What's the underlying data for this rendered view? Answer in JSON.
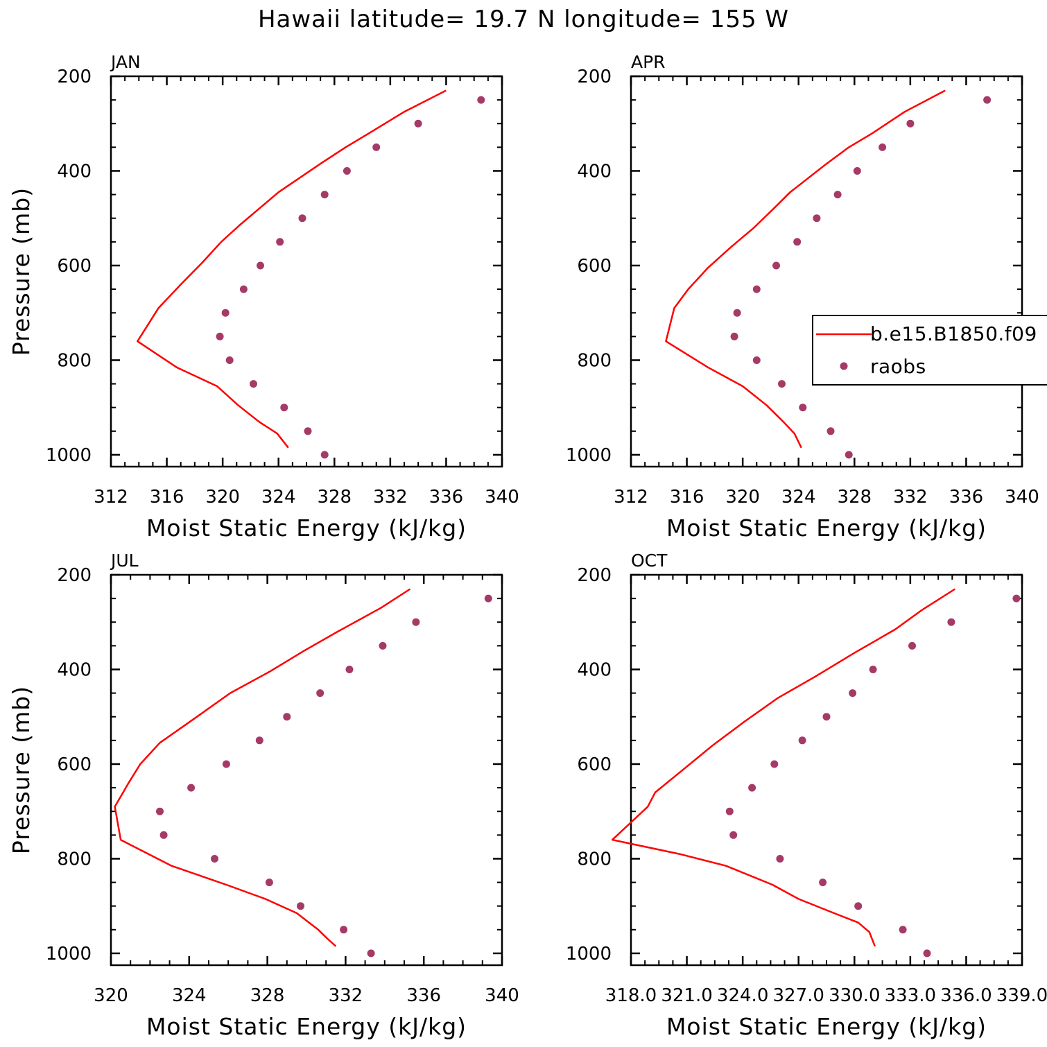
{
  "title": "Hawaii  latitude= 19.7 N longitude= 155 W",
  "legend": {
    "entries": [
      {
        "label": "b.e15.B1850.f09",
        "marker": "line"
      },
      {
        "label": "raobs",
        "marker": "dot"
      }
    ]
  },
  "colors": {
    "model": "#ff0000",
    "raobs": "#a63a66",
    "axis": "#000000"
  },
  "chart_data": [
    {
      "type": "line",
      "panel": "JAN",
      "title": "JAN",
      "xlabel": "Moist Static Energy (kJ/kg)",
      "ylabel": "Pressure (mb)",
      "xlim": [
        312,
        340
      ],
      "ylim": [
        1025,
        200
      ],
      "xticks": [
        312,
        316,
        320,
        324,
        328,
        332,
        336,
        340
      ],
      "xticklabels": [
        "312",
        "316",
        "320",
        "324",
        "328",
        "332",
        "336",
        "340"
      ],
      "yticks": [
        200,
        400,
        600,
        800,
        1000
      ],
      "yticklabels": [
        "200",
        "400",
        "600",
        "800",
        "1000"
      ],
      "series": [
        {
          "name": "b.e15.B1850.f09",
          "kind": "line",
          "points": [
            [
              336.0,
              230
            ],
            [
              333.0,
              275
            ],
            [
              330.5,
              320
            ],
            [
              328.8,
              350
            ],
            [
              327.0,
              385
            ],
            [
              325.5,
              415
            ],
            [
              324.0,
              445
            ],
            [
              322.6,
              480
            ],
            [
              321.2,
              515
            ],
            [
              319.9,
              550
            ],
            [
              318.5,
              595
            ],
            [
              317.0,
              640
            ],
            [
              315.4,
              690
            ],
            [
              313.9,
              760
            ],
            [
              316.7,
              815
            ],
            [
              319.6,
              855
            ],
            [
              321.1,
              895
            ],
            [
              322.6,
              930
            ],
            [
              323.9,
              955
            ],
            [
              324.7,
              985
            ]
          ]
        },
        {
          "name": "raobs",
          "kind": "scatter",
          "points": [
            [
              338.5,
              250
            ],
            [
              334.0,
              300
            ],
            [
              331.0,
              350
            ],
            [
              328.9,
              400
            ],
            [
              327.3,
              450
            ],
            [
              325.7,
              500
            ],
            [
              324.1,
              550
            ],
            [
              322.7,
              600
            ],
            [
              321.5,
              650
            ],
            [
              320.2,
              700
            ],
            [
              319.8,
              750
            ],
            [
              320.5,
              800
            ],
            [
              322.2,
              850
            ],
            [
              324.4,
              900
            ],
            [
              326.1,
              950
            ],
            [
              327.3,
              1000
            ]
          ]
        }
      ]
    },
    {
      "type": "line",
      "panel": "APR",
      "title": "APR",
      "xlabel": "Moist Static Energy (kJ/kg)",
      "ylabel": "",
      "xlim": [
        312,
        340
      ],
      "ylim": [
        1025,
        200
      ],
      "xticks": [
        312,
        316,
        320,
        324,
        328,
        332,
        336,
        340
      ],
      "xticklabels": [
        "312",
        "316",
        "320",
        "324",
        "328",
        "332",
        "336",
        "340"
      ],
      "yticks": [
        200,
        400,
        600,
        800,
        1000
      ],
      "yticklabels": [
        "200",
        "400",
        "600",
        "800",
        "1000"
      ],
      "series": [
        {
          "name": "b.e15.B1850.f09",
          "kind": "line",
          "points": [
            [
              334.5,
              230
            ],
            [
              331.6,
              275
            ],
            [
              329.3,
              320
            ],
            [
              327.6,
              350
            ],
            [
              326.0,
              385
            ],
            [
              324.7,
              415
            ],
            [
              323.4,
              445
            ],
            [
              322.2,
              480
            ],
            [
              320.8,
              520
            ],
            [
              319.2,
              560
            ],
            [
              317.5,
              605
            ],
            [
              316.1,
              650
            ],
            [
              315.1,
              690
            ],
            [
              314.5,
              760
            ],
            [
              317.5,
              815
            ],
            [
              320.0,
              855
            ],
            [
              321.7,
              895
            ],
            [
              322.9,
              930
            ],
            [
              323.7,
              955
            ],
            [
              324.2,
              985
            ]
          ]
        },
        {
          "name": "raobs",
          "kind": "scatter",
          "points": [
            [
              337.5,
              250
            ],
            [
              332.0,
              300
            ],
            [
              330.0,
              350
            ],
            [
              328.2,
              400
            ],
            [
              326.8,
              450
            ],
            [
              325.3,
              500
            ],
            [
              323.9,
              550
            ],
            [
              322.4,
              600
            ],
            [
              321.0,
              650
            ],
            [
              319.6,
              700
            ],
            [
              319.4,
              750
            ],
            [
              321.0,
              800
            ],
            [
              322.8,
              850
            ],
            [
              324.3,
              900
            ],
            [
              326.3,
              950
            ],
            [
              327.6,
              1000
            ]
          ]
        }
      ]
    },
    {
      "type": "line",
      "panel": "JUL",
      "title": "JUL",
      "xlabel": "Moist Static Energy (kJ/kg)",
      "ylabel": "Pressure (mb)",
      "xlim": [
        320,
        340
      ],
      "ylim": [
        1025,
        200
      ],
      "xticks": [
        320,
        324,
        328,
        332,
        336,
        340
      ],
      "xticklabels": [
        "320",
        "324",
        "328",
        "332",
        "336",
        "340"
      ],
      "yticks": [
        200,
        400,
        600,
        800,
        1000
      ],
      "yticklabels": [
        "200",
        "400",
        "600",
        "800",
        "1000"
      ],
      "series": [
        {
          "name": "b.e15.B1850.f09",
          "kind": "line",
          "points": [
            [
              335.3,
              230
            ],
            [
              333.8,
              270
            ],
            [
              331.6,
              320
            ],
            [
              329.9,
              360
            ],
            [
              328.1,
              405
            ],
            [
              326.1,
              450
            ],
            [
              324.4,
              500
            ],
            [
              322.5,
              555
            ],
            [
              321.5,
              600
            ],
            [
              320.9,
              640
            ],
            [
              320.2,
              690
            ],
            [
              320.5,
              760
            ],
            [
              323.1,
              815
            ],
            [
              325.9,
              855
            ],
            [
              327.9,
              885
            ],
            [
              329.5,
              915
            ],
            [
              330.6,
              950
            ],
            [
              331.1,
              970
            ],
            [
              331.5,
              985
            ]
          ]
        },
        {
          "name": "raobs",
          "kind": "scatter",
          "points": [
            [
              339.3,
              250
            ],
            [
              335.6,
              300
            ],
            [
              333.9,
              350
            ],
            [
              332.2,
              400
            ],
            [
              330.7,
              450
            ],
            [
              329.0,
              500
            ],
            [
              327.6,
              550
            ],
            [
              325.9,
              600
            ],
            [
              324.1,
              650
            ],
            [
              322.5,
              700
            ],
            [
              322.7,
              750
            ],
            [
              325.3,
              800
            ],
            [
              328.1,
              850
            ],
            [
              329.7,
              900
            ],
            [
              331.9,
              950
            ],
            [
              333.3,
              1000
            ]
          ]
        }
      ]
    },
    {
      "type": "line",
      "panel": "OCT",
      "title": "OCT",
      "xlabel": "Moist Static Energy (kJ/kg)",
      "ylabel": "",
      "xlim": [
        318.0,
        339.0
      ],
      "ylim": [
        1025,
        200
      ],
      "xticks": [
        318.0,
        321.0,
        324.0,
        327.0,
        330.0,
        333.0,
        336.0,
        339.0
      ],
      "xticklabels": [
        "318.0",
        "321.0",
        "324.0",
        "327.0",
        "330.0",
        "333.0",
        "336.0",
        "339.0"
      ],
      "yticks": [
        200,
        400,
        600,
        800,
        1000
      ],
      "yticklabels": [
        "200",
        "400",
        "600",
        "800",
        "1000"
      ],
      "series": [
        {
          "name": "b.e15.B1850.f09",
          "kind": "line",
          "points": [
            [
              335.4,
              230
            ],
            [
              333.6,
              275
            ],
            [
              332.2,
              315
            ],
            [
              330.0,
              365
            ],
            [
              327.9,
              415
            ],
            [
              325.9,
              460
            ],
            [
              324.1,
              510
            ],
            [
              322.4,
              560
            ],
            [
              320.7,
              615
            ],
            [
              319.3,
              660
            ],
            [
              318.9,
              690
            ],
            [
              317.0,
              760
            ],
            [
              320.6,
              790
            ],
            [
              323.1,
              815
            ],
            [
              325.6,
              855
            ],
            [
              327.0,
              885
            ],
            [
              328.9,
              915
            ],
            [
              330.2,
              935
            ],
            [
              330.8,
              955
            ],
            [
              331.1,
              985
            ]
          ]
        },
        {
          "name": "raobs",
          "kind": "scatter",
          "points": [
            [
              338.7,
              250
            ],
            [
              335.2,
              300
            ],
            [
              333.1,
              350
            ],
            [
              331.0,
              400
            ],
            [
              329.9,
              450
            ],
            [
              328.5,
              500
            ],
            [
              327.2,
              550
            ],
            [
              325.7,
              600
            ],
            [
              324.5,
              650
            ],
            [
              323.3,
              700
            ],
            [
              323.5,
              750
            ],
            [
              326.0,
              800
            ],
            [
              328.3,
              850
            ],
            [
              330.2,
              900
            ],
            [
              332.6,
              950
            ],
            [
              333.9,
              1000
            ]
          ]
        }
      ]
    }
  ]
}
